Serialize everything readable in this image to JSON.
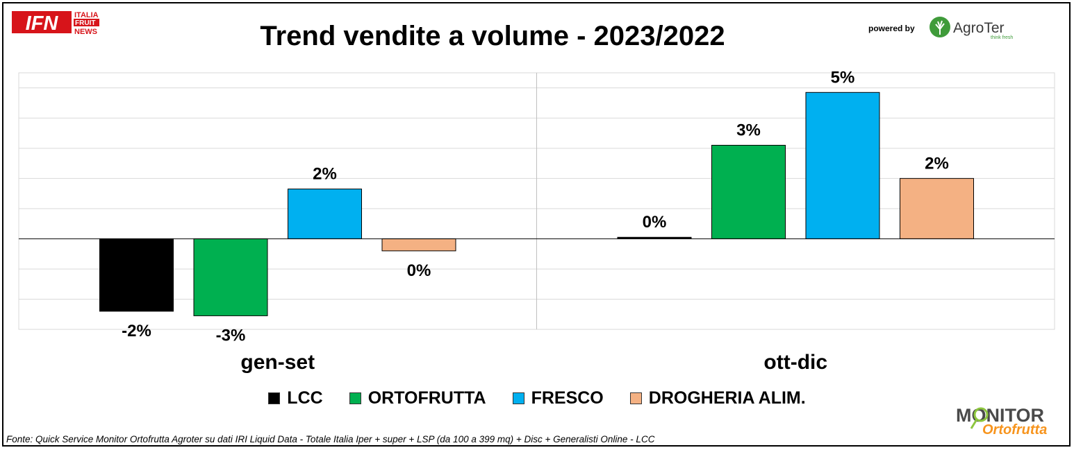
{
  "header": {
    "title": "Trend vendite a volume - 2023/2022",
    "powered_by": "powered by"
  },
  "logos": {
    "ifn": {
      "letters": "IFN",
      "line1": "ITALIA",
      "line2": "FRUIT",
      "line3": "NEWS"
    },
    "agroter": {
      "name": "AgroTer",
      "tagline": "think fresh"
    },
    "monitor": {
      "line1": "MONITOR",
      "line2": "Ortofrutta"
    }
  },
  "footer": {
    "source": "Fonte: Quick Service Monitor Ortofrutta Agroter su dati IRI Liquid Data - Totale Italia Iper + super + LSP (da 100 a 399 mq) + Disc + Generalisti Online - LCC"
  },
  "chart_data": {
    "type": "bar",
    "title": "Trend vendite a volume - 2023/2022",
    "categories": [
      "gen-set",
      "ott-dic"
    ],
    "ylim": [
      -3,
      5.5
    ],
    "grid": true,
    "legend_position": "bottom",
    "series": [
      {
        "name": "LCC",
        "color": "#000000",
        "values": [
          -2.4,
          0.05
        ],
        "labels": [
          "-2%",
          "0%"
        ]
      },
      {
        "name": "ORTOFRUTTA",
        "color": "#00b050",
        "values": [
          -2.55,
          3.1
        ],
        "labels": [
          "-3%",
          "3%"
        ]
      },
      {
        "name": "FRESCO",
        "color": "#00b0f0",
        "values": [
          1.65,
          4.85
        ],
        "labels": [
          "2%",
          "5%"
        ]
      },
      {
        "name": "DROGHERIA ALIM.",
        "color": "#f4b183",
        "values": [
          -0.4,
          2.0
        ],
        "labels": [
          "0%",
          "2%"
        ]
      }
    ]
  }
}
